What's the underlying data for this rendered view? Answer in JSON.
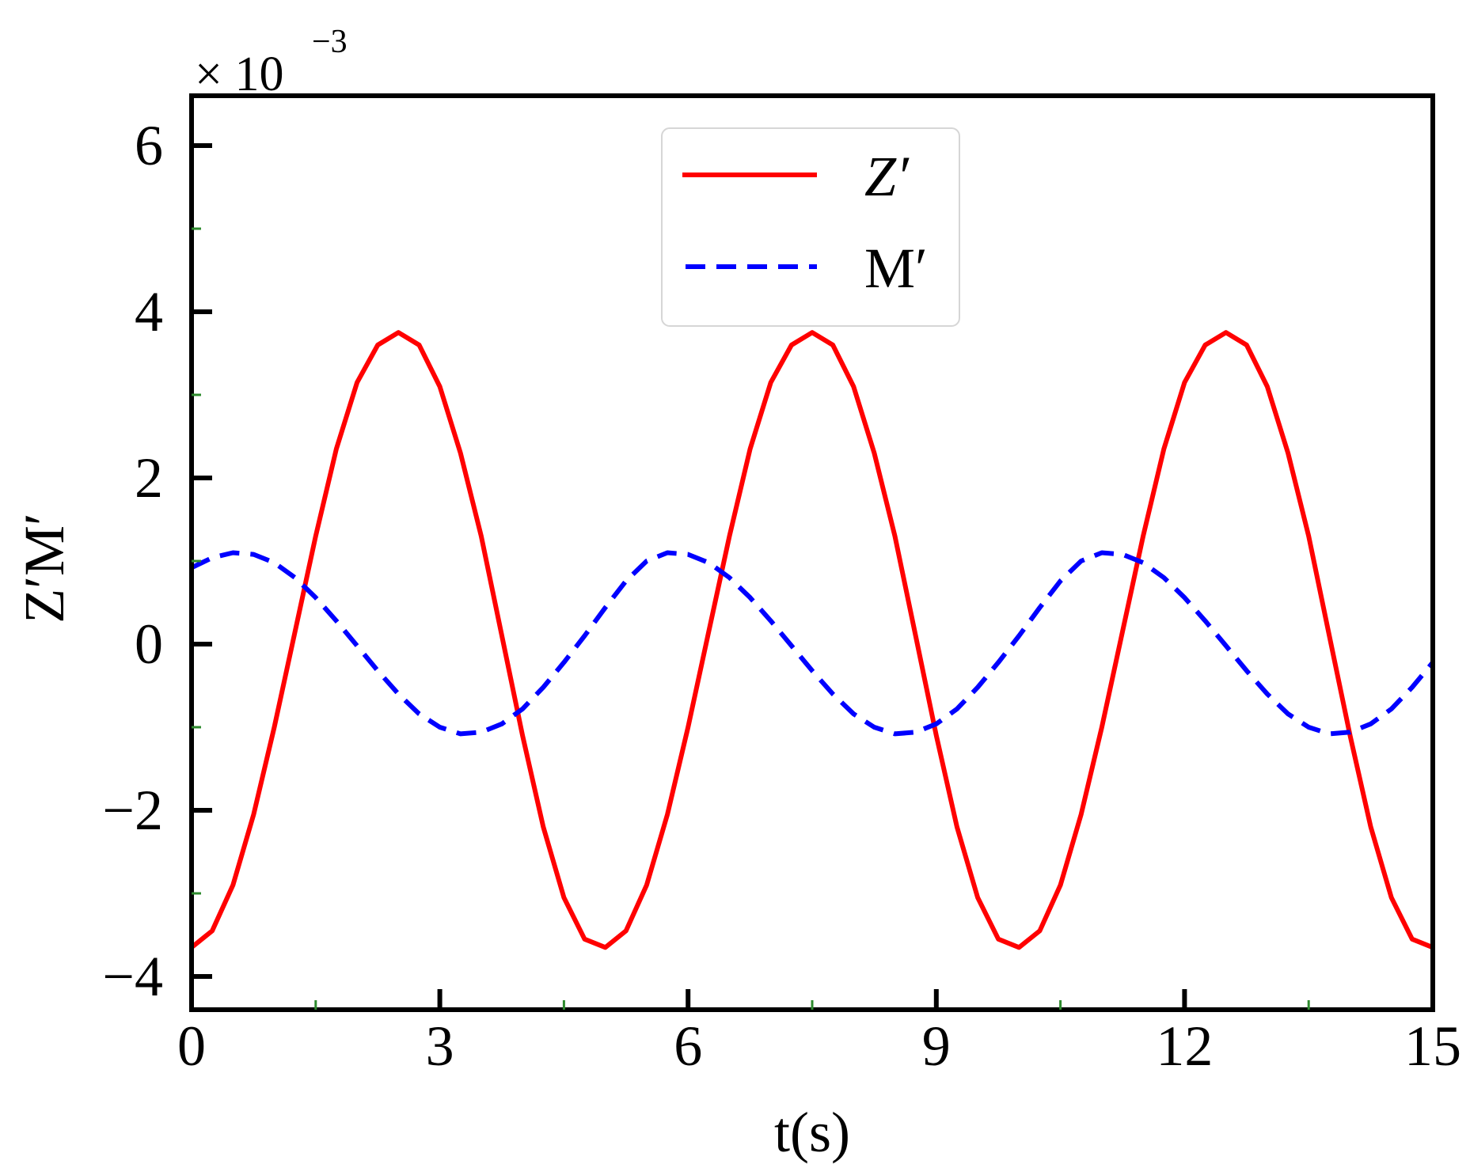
{
  "chart_data": {
    "type": "line",
    "title": "",
    "xlabel": "t(s)",
    "ylabel": "Z′M′",
    "y_scale_label": {
      "base": "× 10",
      "exponent": "−3"
    },
    "xlim": [
      0,
      15
    ],
    "ylim": [
      -4.4,
      6.6
    ],
    "x_ticks": [
      0,
      3,
      6,
      9,
      12,
      15
    ],
    "x_tick_labels": [
      "0",
      "3",
      "6",
      "9",
      "12",
      "15"
    ],
    "x_minor_ticks": [
      1.5,
      4.5,
      7.5,
      10.5,
      13.5
    ],
    "y_ticks": [
      -4,
      -2,
      0,
      2,
      4,
      6
    ],
    "y_tick_labels": [
      "−4",
      "−2",
      "0",
      "2",
      "4",
      "6"
    ],
    "y_minor_ticks": [
      -3,
      -1,
      1,
      3,
      5
    ],
    "grid": false,
    "legend_position": "top-center",
    "series": [
      {
        "name": "Z′",
        "color": "#ff0000",
        "style": "solid",
        "x": [
          0,
          0.25,
          0.5,
          0.75,
          1.0,
          1.25,
          1.5,
          1.75,
          2.0,
          2.25,
          2.5,
          2.75,
          3.0,
          3.25,
          3.5,
          3.75,
          4.0,
          4.25,
          4.5,
          4.75,
          5.0,
          5.25,
          5.5,
          5.75,
          6.0,
          6.25,
          6.5,
          6.75,
          7.0,
          7.25,
          7.5,
          7.75,
          8.0,
          8.25,
          8.5,
          8.75,
          9.0,
          9.25,
          9.5,
          9.75,
          10.0,
          10.25,
          10.5,
          10.75,
          11.0,
          11.25,
          11.5,
          11.75,
          12.0,
          12.25,
          12.5,
          12.75,
          13.0,
          13.25,
          13.5,
          13.75,
          14.0,
          14.25,
          14.5,
          14.75,
          15.0
        ],
        "y": [
          -3.65,
          -3.45,
          -2.9,
          -2.05,
          -1.0,
          0.15,
          1.3,
          2.35,
          3.15,
          3.6,
          3.75,
          3.6,
          3.1,
          2.3,
          1.3,
          0.1,
          -1.1,
          -2.2,
          -3.05,
          -3.55,
          -3.65,
          -3.45,
          -2.9,
          -2.05,
          -1.0,
          0.15,
          1.3,
          2.35,
          3.15,
          3.6,
          3.75,
          3.6,
          3.1,
          2.3,
          1.3,
          0.1,
          -1.1,
          -2.2,
          -3.05,
          -3.55,
          -3.65,
          -3.45,
          -2.9,
          -2.05,
          -1.0,
          0.15,
          1.3,
          2.35,
          3.15,
          3.6,
          3.75,
          3.6,
          3.1,
          2.3,
          1.3,
          0.1,
          -1.1,
          -2.2,
          -3.05,
          -3.55,
          -3.65
        ]
      },
      {
        "name": "M′",
        "color": "#0000ff",
        "style": "dashed",
        "x": [
          0,
          0.25,
          0.5,
          0.75,
          1.0,
          1.25,
          1.5,
          1.75,
          2.0,
          2.25,
          2.5,
          2.75,
          3.0,
          3.25,
          3.5,
          3.75,
          4.0,
          4.25,
          4.5,
          4.75,
          5.0,
          5.25,
          5.5,
          5.75,
          6.0,
          6.25,
          6.5,
          6.75,
          7.0,
          7.25,
          7.5,
          7.75,
          8.0,
          8.25,
          8.5,
          8.75,
          9.0,
          9.25,
          9.5,
          9.75,
          10.0,
          10.25,
          10.5,
          10.75,
          11.0,
          11.25,
          11.5,
          11.75,
          12.0,
          12.25,
          12.5,
          12.75,
          13.0,
          13.25,
          13.5,
          13.75,
          14.0,
          14.25,
          14.5,
          14.75,
          15.0
        ],
        "y": [
          0.92,
          1.04,
          1.1,
          1.08,
          0.98,
          0.8,
          0.56,
          0.28,
          -0.02,
          -0.32,
          -0.6,
          -0.84,
          -1.0,
          -1.08,
          -1.06,
          -0.96,
          -0.78,
          -0.52,
          -0.22,
          0.1,
          0.44,
          0.76,
          1.0,
          1.1,
          1.08,
          0.98,
          0.8,
          0.56,
          0.28,
          -0.02,
          -0.32,
          -0.6,
          -0.84,
          -1.0,
          -1.08,
          -1.06,
          -0.96,
          -0.78,
          -0.52,
          -0.22,
          0.1,
          0.44,
          0.76,
          1.0,
          1.1,
          1.08,
          0.98,
          0.8,
          0.56,
          0.28,
          -0.02,
          -0.32,
          -0.6,
          -0.84,
          -1.0,
          -1.08,
          -1.06,
          -0.96,
          -0.78,
          -0.52,
          -0.22
        ]
      }
    ]
  }
}
